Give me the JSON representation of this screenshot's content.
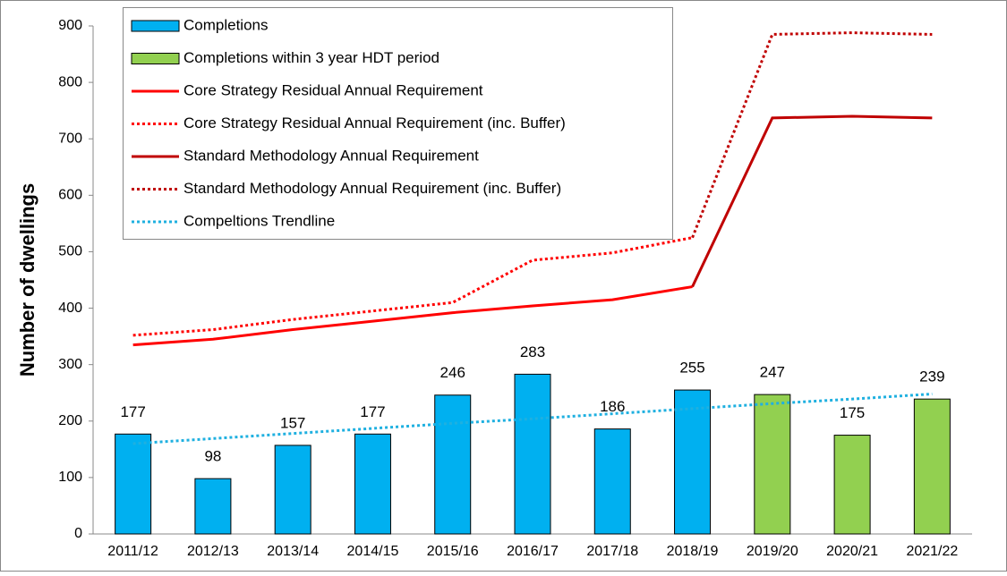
{
  "chart_data": {
    "type": "bar",
    "y_label": "Number of dwellings",
    "categories": [
      "2011/12",
      "2012/13",
      "2013/14",
      "2014/15",
      "2015/16",
      "2016/17",
      "2017/18",
      "2018/19",
      "2019/20",
      "2020/21",
      "2021/22"
    ],
    "ylim": [
      0,
      900
    ],
    "yticks": [
      0,
      100,
      200,
      300,
      400,
      500,
      600,
      700,
      800,
      900
    ],
    "series": [
      {
        "name": "Completions",
        "type": "bar",
        "color": "#00b0f0",
        "values": [
          177,
          98,
          157,
          177,
          246,
          283,
          186,
          255,
          null,
          null,
          null
        ]
      },
      {
        "name": "Completions within 3 year HDT period",
        "type": "bar",
        "color": "#92d050",
        "values": [
          null,
          null,
          null,
          null,
          null,
          null,
          null,
          null,
          247,
          175,
          239
        ]
      },
      {
        "name": "Core Strategy Residual Annual Requirement",
        "type": "line",
        "dash": "solid",
        "color": "#ff0000",
        "values": [
          335,
          345,
          362,
          377,
          392,
          404,
          415,
          438,
          null,
          null,
          null
        ]
      },
      {
        "name": "Core Strategy Residual Annual Requirement (inc. Buffer)",
        "type": "line",
        "dash": "dotted",
        "color": "#ff0000",
        "values": [
          352,
          362,
          380,
          395,
          410,
          485,
          498,
          525,
          null,
          null,
          null
        ]
      },
      {
        "name": "Standard Methodology Annual Requirement",
        "type": "line",
        "dash": "solid",
        "color": "#c00000",
        "values": [
          null,
          null,
          null,
          null,
          null,
          null,
          null,
          438,
          737,
          740,
          737
        ]
      },
      {
        "name": "Standard Methodology Annual Requirement (inc. Buffer)",
        "type": "line",
        "dash": "dotted",
        "color": "#c00000",
        "values": [
          null,
          null,
          null,
          null,
          null,
          null,
          null,
          525,
          885,
          888,
          885
        ]
      },
      {
        "name": "Compeltions Trendline",
        "type": "line",
        "dash": "dotted",
        "color": "#1fb0e0",
        "values": [
          160,
          169,
          178,
          187,
          196,
          204,
          213,
          222,
          231,
          239,
          248
        ]
      }
    ]
  }
}
